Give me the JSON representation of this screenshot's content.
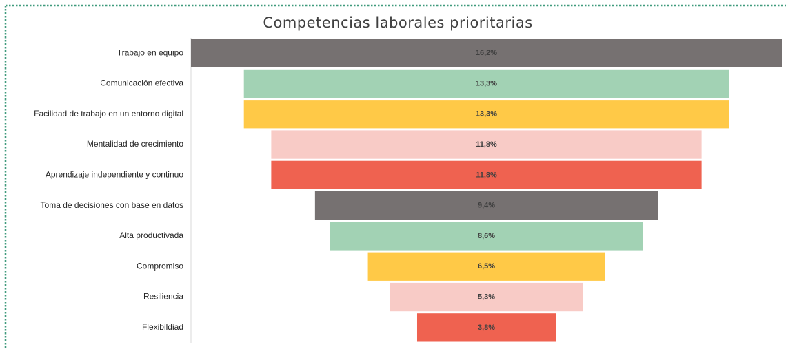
{
  "chart_data": {
    "type": "funnel",
    "title": "Competencias laborales prioritarias",
    "categories": [
      "Trabajo en equipo",
      "Comunicación efectiva",
      "Facilidad de trabajo en un entorno digital",
      "Mentalidad de crecimiento",
      "Aprendizaje independiente y continuo",
      "Toma de decisiones con base en datos",
      "Alta productivada",
      "Compromiso",
      "Resiliencia",
      "Flexibildiad"
    ],
    "values": [
      16.2,
      13.3,
      13.3,
      11.8,
      11.8,
      9.4,
      8.6,
      6.5,
      5.3,
      3.8
    ],
    "value_labels": [
      "16,2%",
      "13,3%",
      "13,3%",
      "11,8%",
      "11,8%",
      "9,4%",
      "8,6%",
      "6,5%",
      "5,3%",
      "3,8%"
    ],
    "colors": [
      "#767171",
      "#a2d2b4",
      "#ffc947",
      "#f8cbc6",
      "#ef6250",
      "#767171",
      "#a2d2b4",
      "#ffc947",
      "#f8cbc6",
      "#ef6250"
    ]
  }
}
